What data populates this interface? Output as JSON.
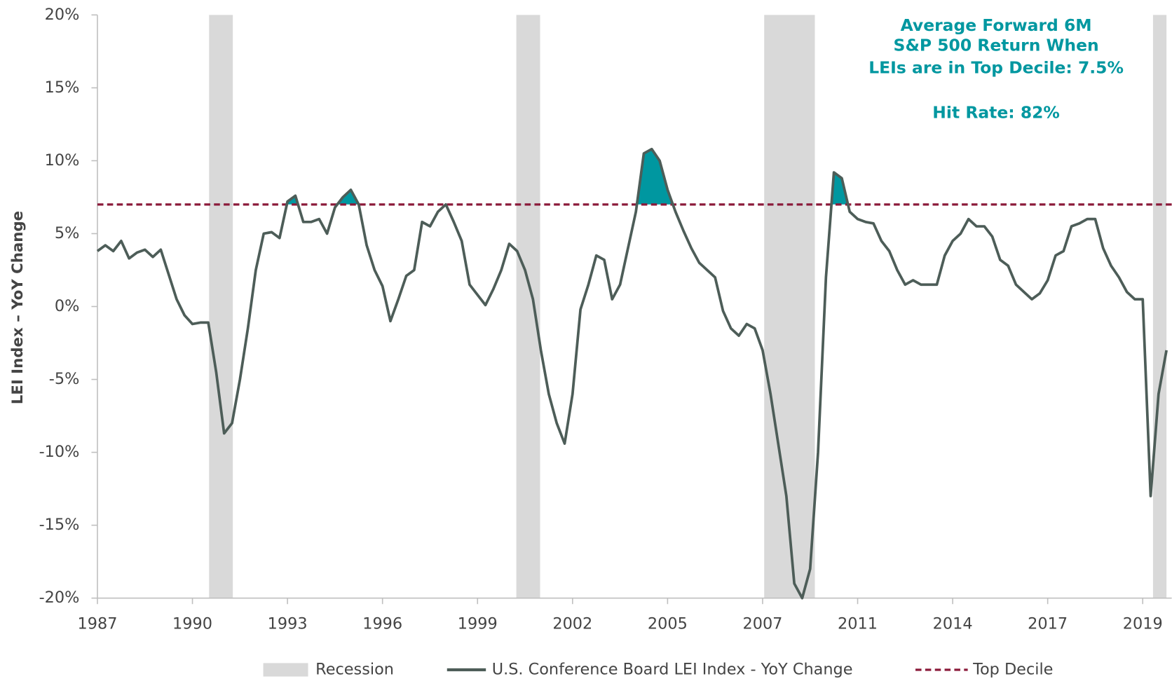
{
  "chart_data": {
    "type": "line",
    "y_axis_label": "LEI Index – YoY Change",
    "categories": [
      "1987",
      null,
      null,
      null,
      null,
      null,
      null,
      null,
      null,
      null,
      null,
      null,
      "1990",
      null,
      null,
      null,
      null,
      null,
      null,
      null,
      null,
      null,
      null,
      null,
      "1993",
      null,
      null,
      null,
      null,
      null,
      null,
      null,
      null,
      null,
      null,
      null,
      "1996",
      null,
      null,
      null,
      null,
      null,
      null,
      null,
      null,
      null,
      null,
      null,
      "1999",
      null,
      null,
      null,
      null,
      null,
      null,
      null,
      null,
      null,
      null,
      null,
      "2002",
      null,
      null,
      null,
      null,
      null,
      null,
      null,
      null,
      null,
      null,
      null,
      "2005",
      null,
      null,
      null,
      null,
      null,
      null,
      null,
      null,
      null,
      null,
      null,
      "2007",
      null,
      null,
      null,
      null,
      null,
      null,
      null,
      null,
      null,
      null,
      null,
      "2011",
      null,
      null,
      null,
      null,
      null,
      null,
      null,
      null,
      null,
      null,
      null,
      "2014",
      null,
      null,
      null,
      null,
      null,
      null,
      null,
      null,
      null,
      null,
      null,
      "2017",
      null,
      null,
      null,
      null,
      null,
      null,
      null,
      null,
      null,
      null,
      null,
      "2019",
      null,
      null,
      null
    ],
    "series": [
      {
        "name": "U.S. Conference Board LEI Index - YoY Change",
        "color": "#4d5d58",
        "values": [
          3.8,
          4.2,
          3.8,
          4.5,
          3.3,
          3.7,
          3.9,
          3.4,
          3.9,
          2.2,
          0.5,
          -0.6,
          -1.2,
          -1.1,
          -1.1,
          -4.5,
          -8.7,
          -8.0,
          -5.0,
          -1.5,
          2.5,
          5.0,
          5.1,
          4.7,
          7.2,
          7.6,
          5.8,
          5.8,
          6.0,
          5.0,
          6.8,
          7.5,
          8.0,
          7.0,
          4.2,
          2.5,
          1.4,
          -1.0,
          0.5,
          2.1,
          2.5,
          5.8,
          5.5,
          6.5,
          7.0,
          5.8,
          4.5,
          1.5,
          0.8,
          0.1,
          1.2,
          2.5,
          4.3,
          3.8,
          2.5,
          0.5,
          -3.0,
          -6.0,
          -8.0,
          -9.4,
          -6.0,
          -0.2,
          1.5,
          3.5,
          3.2,
          0.5,
          1.5,
          4.0,
          6.5,
          10.5,
          10.8,
          10.0,
          8.0,
          6.5,
          5.2,
          4.0,
          3.0,
          2.5,
          2.0,
          -0.3,
          -1.5,
          -2.0,
          -1.2,
          -1.5,
          -3.0,
          -6.0,
          -9.5,
          -13.0,
          -19.0,
          -20.0,
          -18.0,
          -10.0,
          2.0,
          9.2,
          8.8,
          6.5,
          6.0,
          5.8,
          5.7,
          4.5,
          3.8,
          2.5,
          1.5,
          1.8,
          1.5,
          1.5,
          1.5,
          3.5,
          4.5,
          5.0,
          6.0,
          5.5,
          5.5,
          4.8,
          3.2,
          2.8,
          1.5,
          1.0,
          0.5,
          0.9,
          1.8,
          3.5,
          3.8,
          5.5,
          5.7,
          6.0,
          6.0,
          4.0,
          2.8,
          2.0,
          1.0,
          0.5,
          0.5,
          -13.0,
          -6.0,
          -3.0
        ]
      }
    ],
    "threshold": {
      "name": "Top Decile",
      "value": 7,
      "color": "#8b1a3a"
    },
    "highlight_color": "#0097a0",
    "recession": {
      "name": "Recession",
      "color": "#d9d9d9",
      "spans": [
        [
          14.1,
          17.1
        ],
        [
          52.9,
          55.9
        ],
        [
          84.2,
          90.6
        ],
        [
          133.3,
          135
        ]
      ]
    },
    "ylim": [
      -20,
      20
    ],
    "yticks": [
      {
        "value": -20,
        "label": "-20%"
      },
      {
        "value": -15,
        "label": "-15%"
      },
      {
        "value": -10,
        "label": "-10%"
      },
      {
        "value": -5,
        "label": "-5%"
      },
      {
        "value": 0,
        "label": "0%"
      },
      {
        "value": 5,
        "label": "5%"
      },
      {
        "value": 10,
        "label": "10%"
      },
      {
        "value": 15,
        "label": "15%"
      },
      {
        "value": 20,
        "label": "20%"
      }
    ],
    "annotation": [
      "Average Forward 6M",
      "S&P 500 Return When",
      "LEIs are in Top Decile: 7.5%"
    ],
    "annotation_2": "Hit Rate: 82%"
  }
}
